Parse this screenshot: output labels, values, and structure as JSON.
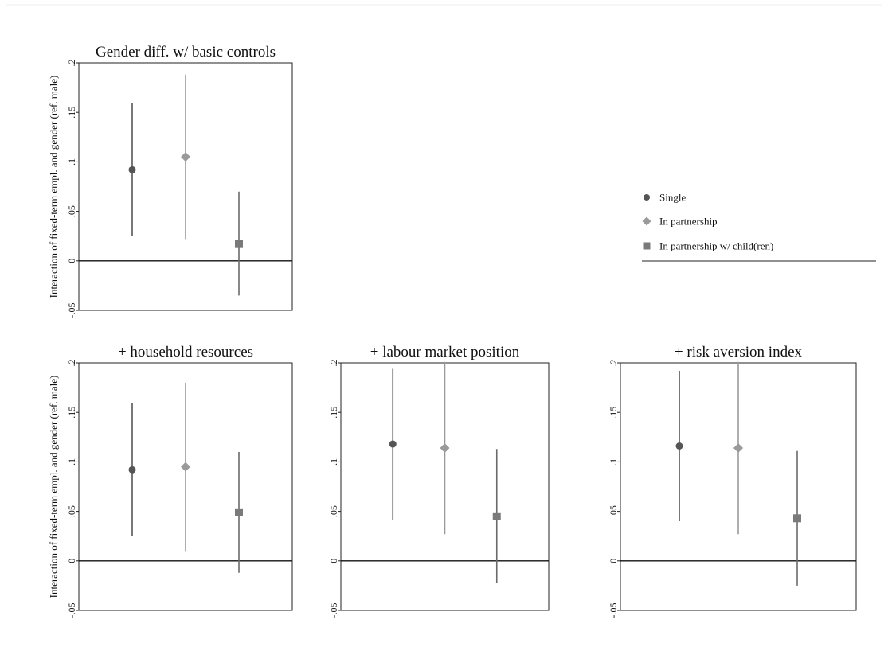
{
  "chart_data": {
    "type": "scatter",
    "ylabel": "Interaction of fixed-term empl. and gender (ref. male)",
    "ylim": [
      -0.05,
      0.2
    ],
    "yticks": [
      {
        "value": -0.05,
        "label": "-.05"
      },
      {
        "value": 0,
        "label": "0"
      },
      {
        "value": 0.05,
        "label": ".05"
      },
      {
        "value": 0.1,
        "label": ".1"
      },
      {
        "value": 0.15,
        "label": ".15"
      },
      {
        "value": 0.2,
        "label": ".2"
      }
    ],
    "reference_line": 0,
    "legend": {
      "placement": "right",
      "entries": [
        {
          "name": "Single",
          "marker": "circle",
          "color": "#555555"
        },
        {
          "name": "In partnership",
          "marker": "diamond",
          "color": "#9a9a9a"
        },
        {
          "name": "In partnership w/ child(ren)",
          "marker": "square",
          "color": "#7a7a7a"
        }
      ]
    },
    "panels": [
      {
        "title": "Gender diff. w/ basic controls",
        "points": [
          {
            "group": "Single",
            "estimate": 0.092,
            "ci_low": 0.025,
            "ci_high": 0.159
          },
          {
            "group": "In partnership",
            "estimate": 0.105,
            "ci_low": 0.022,
            "ci_high": 0.188
          },
          {
            "group": "In partnership w/ child(ren)",
            "estimate": 0.017,
            "ci_low": -0.035,
            "ci_high": 0.07
          }
        ]
      },
      {
        "title": "+  household resources",
        "points": [
          {
            "group": "Single",
            "estimate": 0.092,
            "ci_low": 0.025,
            "ci_high": 0.159
          },
          {
            "group": "In partnership",
            "estimate": 0.095,
            "ci_low": 0.01,
            "ci_high": 0.18
          },
          {
            "group": "In partnership w/ child(ren)",
            "estimate": 0.049,
            "ci_low": -0.012,
            "ci_high": 0.11
          }
        ]
      },
      {
        "title": "+ labour market position",
        "points": [
          {
            "group": "Single",
            "estimate": 0.118,
            "ci_low": 0.041,
            "ci_high": 0.194
          },
          {
            "group": "In partnership",
            "estimate": 0.114,
            "ci_low": 0.027,
            "ci_high": 0.201
          },
          {
            "group": "In partnership w/ child(ren)",
            "estimate": 0.045,
            "ci_low": -0.022,
            "ci_high": 0.113
          }
        ]
      },
      {
        "title": "+ risk aversion index",
        "points": [
          {
            "group": "Single",
            "estimate": 0.116,
            "ci_low": 0.04,
            "ci_high": 0.192
          },
          {
            "group": "In partnership",
            "estimate": 0.114,
            "ci_low": 0.027,
            "ci_high": 0.201
          },
          {
            "group": "In partnership w/ child(ren)",
            "estimate": 0.043,
            "ci_low": -0.025,
            "ci_high": 0.111
          }
        ]
      }
    ]
  }
}
